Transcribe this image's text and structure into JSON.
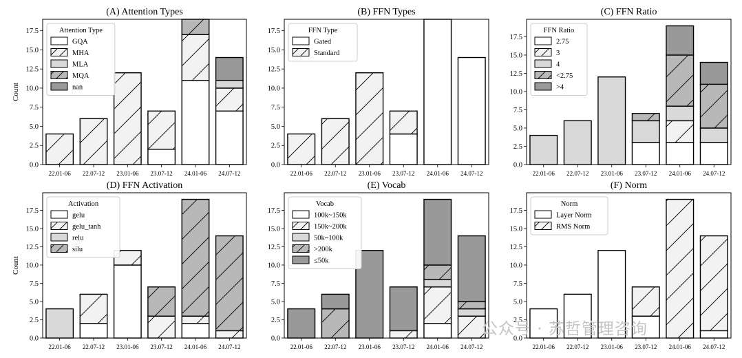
{
  "watermark": "公众号 · 苏哲管理咨询",
  "chart_data": [
    {
      "type": "bar",
      "stacked": true,
      "title": "(A) Attention Types",
      "ylabel": "Count",
      "ylim": [
        0,
        19
      ],
      "yticks": [
        "0.0",
        "2.5",
        "5.0",
        "7.5",
        "10.0",
        "12.5",
        "15.0",
        "17.5"
      ],
      "categories": [
        "22.01-06",
        "22.07-12",
        "23.01-06",
        "23.07-12",
        "24.01-06",
        "24.07-12"
      ],
      "legend_title": "Attention Type",
      "series": [
        {
          "name": "GQA",
          "values": [
            0,
            0,
            0,
            2,
            11,
            7
          ],
          "fill": "#ffffff",
          "hatch": false
        },
        {
          "name": "MHA",
          "values": [
            4,
            6,
            12,
            5,
            6,
            3
          ],
          "fill": "#f2f2f2",
          "hatch": true
        },
        {
          "name": "MLA",
          "values": [
            0,
            0,
            0,
            0,
            0,
            1
          ],
          "fill": "#d9d9d9",
          "hatch": false
        },
        {
          "name": "MQA",
          "values": [
            0,
            0,
            0,
            0,
            2,
            0
          ],
          "fill": "#b8b8b8",
          "hatch": true
        },
        {
          "name": "nan",
          "values": [
            0,
            0,
            0,
            0,
            0,
            3
          ],
          "fill": "#999999",
          "hatch": false
        }
      ]
    },
    {
      "type": "bar",
      "stacked": true,
      "title": "(B) FFN Types",
      "ylabel": "",
      "ylim": [
        0,
        19
      ],
      "yticks": [
        "0.0",
        "2.5",
        "5.0",
        "7.5",
        "10.0",
        "12.5",
        "15.0",
        "17.5"
      ],
      "categories": [
        "22.01-06",
        "22.07-12",
        "23.01-06",
        "23.07-12",
        "24.01-06",
        "24.07-12"
      ],
      "legend_title": "FFN Type",
      "series": [
        {
          "name": "Gated",
          "values": [
            0,
            0,
            0,
            4,
            19,
            14
          ],
          "fill": "#ffffff",
          "hatch": false
        },
        {
          "name": "Standard",
          "values": [
            4,
            6,
            12,
            3,
            0,
            0
          ],
          "fill": "#f2f2f2",
          "hatch": true
        }
      ]
    },
    {
      "type": "bar",
      "stacked": true,
      "title": "(C) FFN Ratio",
      "ylabel": "",
      "ylim": [
        0,
        19.9
      ],
      "yticks": [
        "0.0",
        "2.5",
        "5.0",
        "7.5",
        "10.0",
        "12.5",
        "15.0",
        "17.5"
      ],
      "categories": [
        "22.01-06",
        "22.07-12",
        "23.01-06",
        "23.07-12",
        "24.01-06",
        "24.07-12"
      ],
      "legend_title": "FFN Ratio",
      "series": [
        {
          "name": "2.75",
          "values": [
            0,
            0,
            0,
            3,
            3,
            3
          ],
          "fill": "#ffffff",
          "hatch": false
        },
        {
          "name": "3",
          "values": [
            0,
            0,
            0,
            0,
            3,
            0
          ],
          "fill": "#f2f2f2",
          "hatch": true
        },
        {
          "name": "4",
          "values": [
            4,
            6,
            12,
            3,
            2,
            2
          ],
          "fill": "#d9d9d9",
          "hatch": false
        },
        {
          "name": "<2.75",
          "values": [
            0,
            0,
            0,
            1,
            7,
            6
          ],
          "fill": "#b8b8b8",
          "hatch": true
        },
        {
          "name": ">4",
          "values": [
            0,
            0,
            0,
            0,
            4,
            3
          ],
          "fill": "#999999",
          "hatch": false
        }
      ]
    },
    {
      "type": "bar",
      "stacked": true,
      "title": "(D) FFN Activation",
      "ylabel": "Count",
      "ylim": [
        0,
        19.9
      ],
      "yticks": [
        "0.0",
        "2.5",
        "5.0",
        "7.5",
        "10.0",
        "12.5",
        "15.0",
        "17.5"
      ],
      "categories": [
        "22.01-06",
        "22.07-12",
        "23.01-06",
        "23.07-12",
        "24.01-06",
        "24.07-12"
      ],
      "legend_title": "Activation",
      "series": [
        {
          "name": "gelu",
          "values": [
            0,
            2,
            10,
            0,
            2,
            0
          ],
          "fill": "#ffffff",
          "hatch": false
        },
        {
          "name": "gelu_tanh",
          "values": [
            0,
            4,
            2,
            3,
            1,
            1
          ],
          "fill": "#f2f2f2",
          "hatch": true
        },
        {
          "name": "relu",
          "values": [
            4,
            0,
            0,
            0,
            0,
            0
          ],
          "fill": "#d9d9d9",
          "hatch": false
        },
        {
          "name": "silu",
          "values": [
            0,
            0,
            0,
            4,
            16,
            13
          ],
          "fill": "#b8b8b8",
          "hatch": true
        }
      ]
    },
    {
      "type": "bar",
      "stacked": true,
      "title": "(E) Vocab",
      "ylabel": "",
      "ylim": [
        0,
        19.9
      ],
      "yticks": [
        "0.0",
        "2.5",
        "5.0",
        "7.5",
        "10.0",
        "12.5",
        "15.0",
        "17.5"
      ],
      "categories": [
        "22.01-06",
        "22.07-12",
        "23.01-06",
        "23.07-12",
        "24.01-06",
        "24.07-12"
      ],
      "legend_title": "Vocab",
      "series": [
        {
          "name": "100k~150k",
          "values": [
            0,
            0,
            0,
            0,
            2,
            0
          ],
          "fill": "#ffffff",
          "hatch": false
        },
        {
          "name": "150k~200k",
          "values": [
            0,
            0,
            0,
            1,
            5,
            3
          ],
          "fill": "#f2f2f2",
          "hatch": true
        },
        {
          "name": "50k~100k",
          "values": [
            0,
            0,
            0,
            0,
            1,
            1
          ],
          "fill": "#d9d9d9",
          "hatch": false
        },
        {
          "name": ">200k",
          "values": [
            0,
            4,
            0,
            0,
            2,
            1
          ],
          "fill": "#b8b8b8",
          "hatch": true
        },
        {
          "name": "≤50k",
          "values": [
            4,
            2,
            12,
            6,
            9,
            9
          ],
          "fill": "#999999",
          "hatch": false
        }
      ]
    },
    {
      "type": "bar",
      "stacked": true,
      "title": "(F) Norm",
      "ylabel": "",
      "ylim": [
        0,
        19.9
      ],
      "yticks": [
        "0.0",
        "2.5",
        "5.0",
        "7.5",
        "10.0",
        "12.5",
        "15.0",
        "17.5"
      ],
      "categories": [
        "22.01-06",
        "22.07-12",
        "23.01-06",
        "23.07-12",
        "24.01-06",
        "24.07-12"
      ],
      "legend_title": "Norm",
      "series": [
        {
          "name": "Layer Norm",
          "values": [
            4,
            6,
            12,
            3,
            0,
            1
          ],
          "fill": "#ffffff",
          "hatch": false
        },
        {
          "name": "RMS Norm",
          "values": [
            0,
            0,
            0,
            4,
            19,
            13
          ],
          "fill": "#f2f2f2",
          "hatch": true
        }
      ]
    }
  ]
}
